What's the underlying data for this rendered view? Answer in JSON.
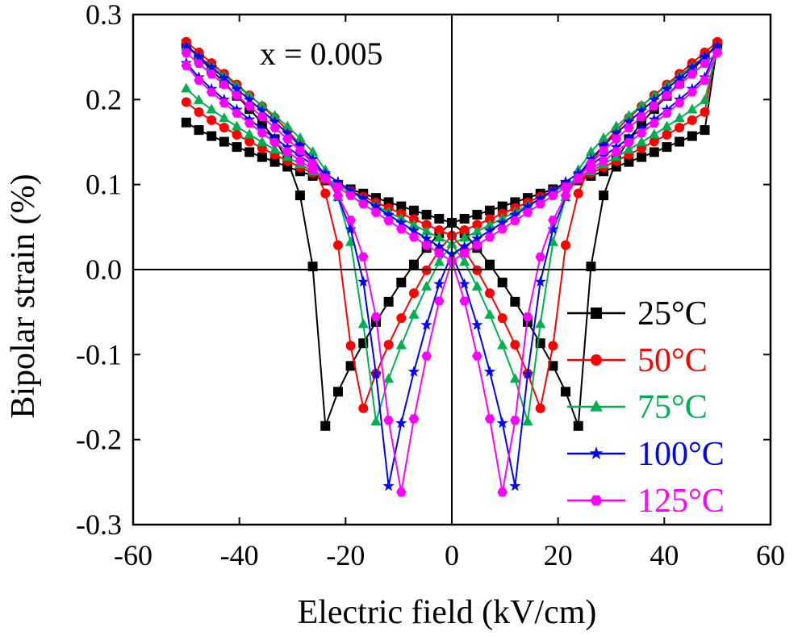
{
  "chart_data": {
    "type": "line",
    "title": "",
    "annotation": "x = 0.005",
    "xlabel": "Electric field (kV/cm)",
    "ylabel": "Bipolar strain (%)",
    "xlim": [
      -60,
      60
    ],
    "ylim": [
      -0.3,
      0.3
    ],
    "xticks": [
      -60,
      -40,
      -20,
      0,
      20,
      40,
      60
    ],
    "yticks": [
      -0.3,
      -0.2,
      -0.1,
      0.0,
      0.1,
      0.2,
      0.3
    ],
    "xtick_labels": [
      "-60",
      "-40",
      "-20",
      "0",
      "20",
      "40",
      "60"
    ],
    "ytick_labels": [
      "-0.3",
      "-0.2",
      "-0.1",
      "0.0",
      "0.1",
      "0.2",
      "0.3"
    ],
    "grid": false,
    "legend_position": "bottom-right",
    "series": [
      {
        "name": "25°C",
        "color": "#000000",
        "marker": "square",
        "Ec": 24,
        "Smin": -0.168,
        "Smax": 0.265,
        "Sneg": 0.173,
        "Szero": 0.055
      },
      {
        "name": "50°C",
        "color": "#ff0000",
        "marker": "circle",
        "Ec": 18,
        "Smin": -0.175,
        "Smax": 0.268,
        "Sneg": 0.197,
        "Szero": 0.04
      },
      {
        "name": "75°C",
        "color": "#00b050",
        "marker": "triangle",
        "Ec": 15,
        "Smin": -0.18,
        "Smax": 0.262,
        "Sneg": 0.213,
        "Szero": 0.03
      },
      {
        "name": "100°C",
        "color": "#0000ff",
        "marker": "star",
        "Ec": 12.5,
        "Smin": -0.26,
        "Smax": 0.263,
        "Sneg": 0.243,
        "Szero": 0.018
      },
      {
        "name": "125°C",
        "color": "#ff00ff",
        "marker": "hexagon",
        "Ec": 10.5,
        "Smin": -0.29,
        "Smax": 0.255,
        "Sneg": 0.24,
        "Szero": 0.01
      }
    ]
  }
}
